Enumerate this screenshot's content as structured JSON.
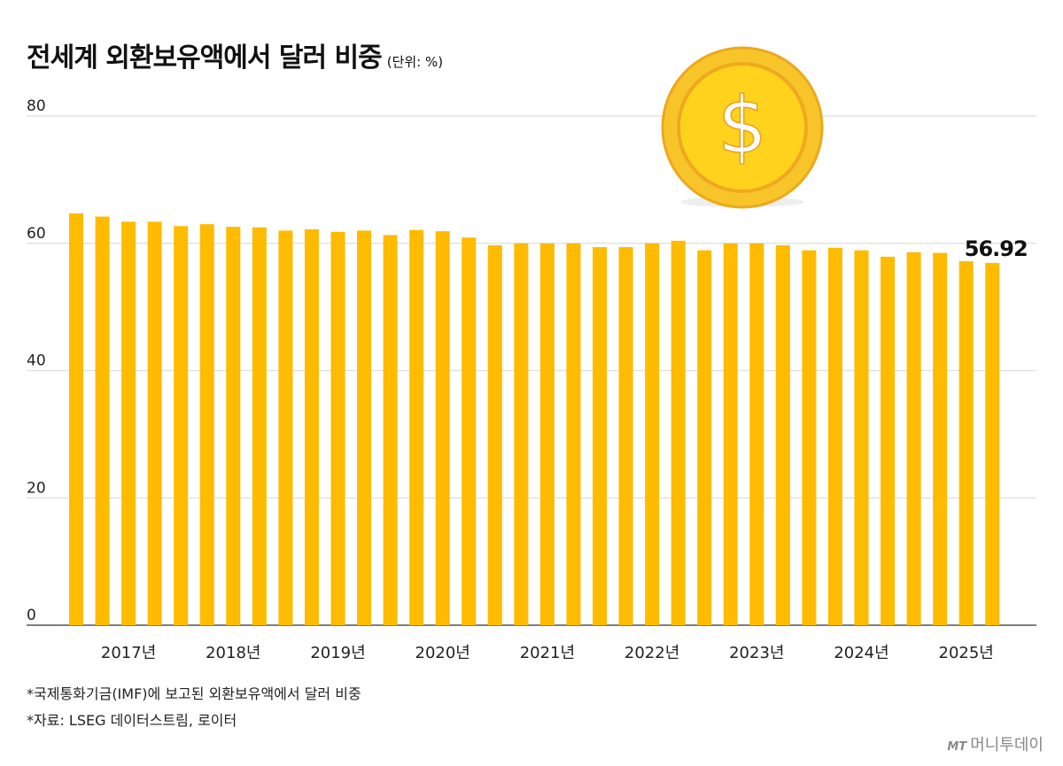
{
  "chart_data": {
    "type": "bar",
    "title": "전세계 외환보유액에서 달러 비중",
    "unit_label": "(단위: %)",
    "xlabel": "",
    "ylabel": "",
    "ylim": [
      0,
      80
    ],
    "yticks": [
      0,
      20,
      40,
      60,
      80
    ],
    "grid": true,
    "categories": [
      "",
      "",
      "2017년",
      "",
      "",
      "",
      "2018년",
      "",
      "",
      "",
      "2019년",
      "",
      "",
      "",
      "2020년",
      "",
      "",
      "",
      "2021년",
      "",
      "",
      "",
      "2022년",
      "",
      "",
      "",
      "2023년",
      "",
      "",
      "",
      "2024년",
      "",
      "",
      "",
      "2025년",
      ""
    ],
    "values": [
      64.7,
      64.2,
      63.4,
      63.4,
      62.7,
      63.0,
      62.6,
      62.5,
      62.0,
      62.2,
      61.8,
      62.0,
      61.3,
      62.1,
      61.9,
      60.9,
      59.7,
      60.0,
      60.0,
      60.0,
      59.4,
      59.4,
      60.0,
      60.4,
      58.9,
      60.0,
      60.0,
      59.7,
      58.9,
      59.3,
      58.9,
      57.9,
      58.6,
      58.5,
      57.2,
      56.92
    ],
    "annotation": "56.92",
    "bar_color": "#FFBB00"
  },
  "notes": [
    "*국제통화기금(IMF)에 보고된 외환보유액에서 달러 비중",
    "*자료: LSEG 데이터스트림, 로이터"
  ],
  "logo": {
    "mark": "MT",
    "name": "머니투데이"
  },
  "coin_symbol": "$"
}
